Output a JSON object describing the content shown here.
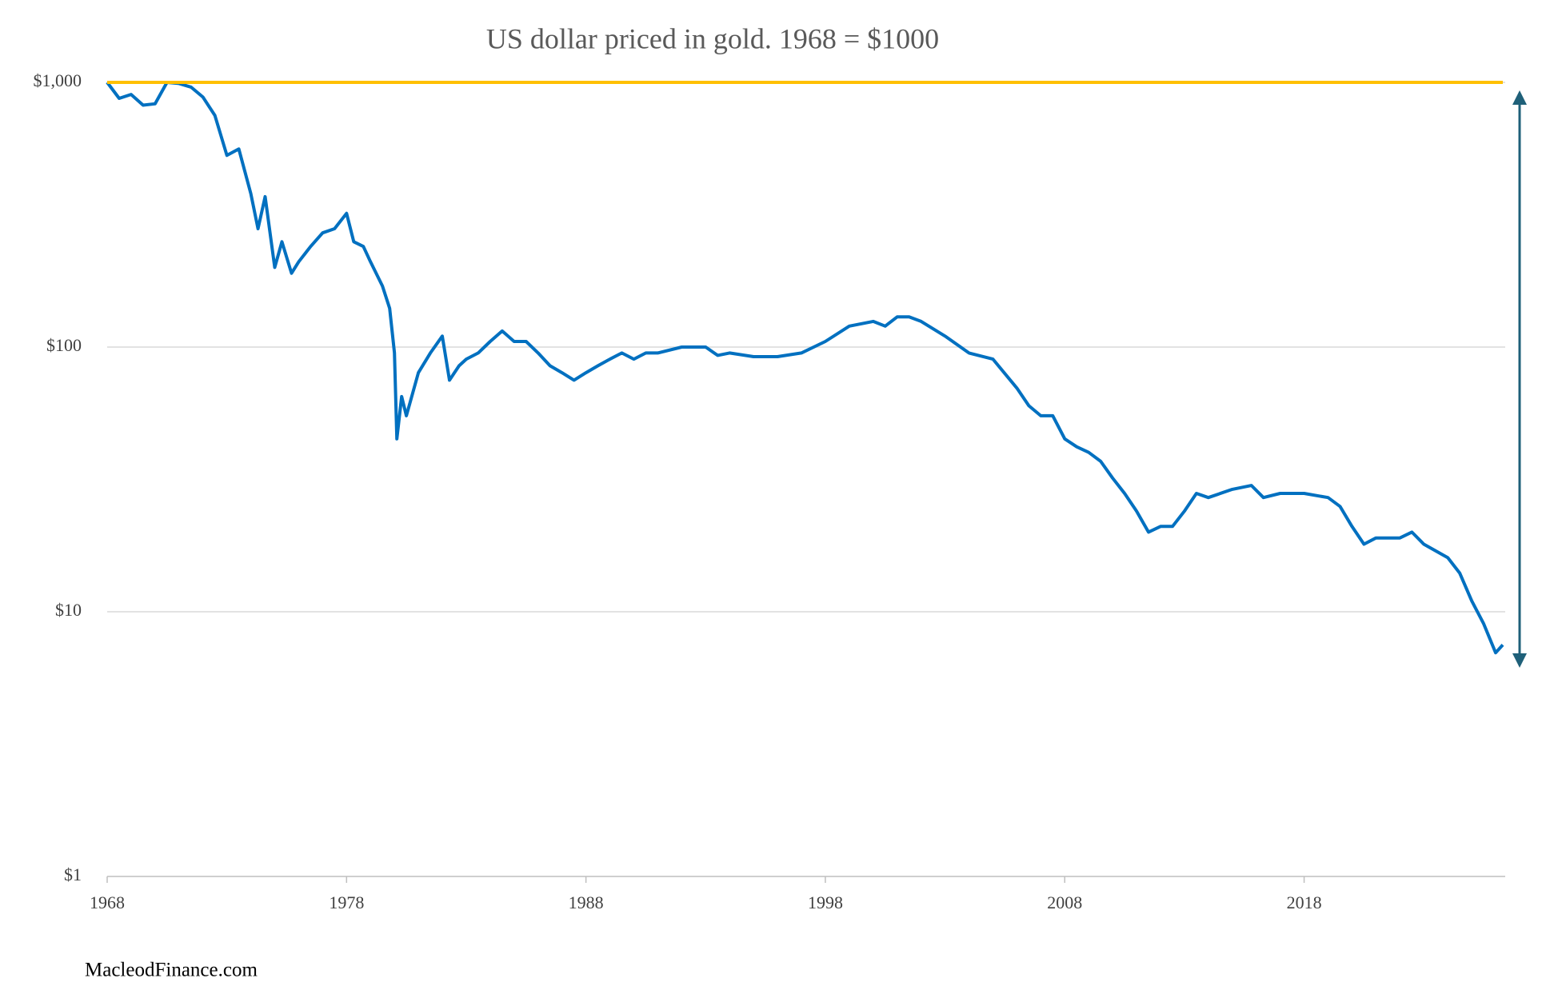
{
  "chart_data": {
    "type": "line",
    "title": "US dollar priced in gold. 1968 = $1000",
    "source": "MacleodFinance.com",
    "log_scale": true,
    "grid": true,
    "xlim": [
      1968,
      2026.4
    ],
    "xticks": [
      1968,
      1978,
      1988,
      1998,
      2008,
      2018
    ],
    "ylim": [
      1,
      1000
    ],
    "yticks": [
      {
        "value": 1,
        "label": "$1"
      },
      {
        "value": 10,
        "label": "$10"
      },
      {
        "value": 100,
        "label": "$100"
      },
      {
        "value": 1000,
        "label": "$1,000"
      }
    ],
    "x": [
      1968,
      1968.5,
      1969,
      1969.5,
      1970,
      1970.5,
      1971,
      1971.5,
      1972,
      1972.5,
      1973,
      1973.5,
      1974,
      1974.3,
      1974.6,
      1975,
      1975.3,
      1975.7,
      1976,
      1976.5,
      1977,
      1977.5,
      1978,
      1978.3,
      1978.7,
      1979,
      1979.5,
      1979.8,
      1980,
      1980.1,
      1980.3,
      1980.5,
      1981,
      1981.5,
      1982,
      1982.3,
      1982.7,
      1983,
      1983.5,
      1984,
      1984.5,
      1985,
      1985.5,
      1986,
      1986.5,
      1987,
      1987.5,
      1988,
      1988.5,
      1989,
      1989.5,
      1990,
      1990.5,
      1991,
      1992,
      1993,
      1993.5,
      1994,
      1995,
      1996,
      1997,
      1998,
      1999,
      2000,
      2000.5,
      2001,
      2001.5,
      2002,
      2003,
      2004,
      2005,
      2006,
      2006.5,
      2007,
      2007.5,
      2008,
      2008.5,
      2009,
      2009.5,
      2010,
      2010.5,
      2011,
      2011.5,
      2012,
      2012.5,
      2013,
      2013.5,
      2014,
      2015,
      2015.8,
      2016.3,
      2017,
      2018,
      2019,
      2019.5,
      2020,
      2020.5,
      2021,
      2022,
      2022.5,
      2023,
      2024,
      2024.5,
      2025,
      2025.5,
      2026,
      2026.3
    ],
    "series": [
      {
        "color": "#0070c0",
        "values": [
          1000,
          870,
          900,
          820,
          830,
          1000,
          990,
          960,
          880,
          750,
          530,
          560,
          380,
          280,
          370,
          200,
          250,
          190,
          210,
          240,
          270,
          280,
          320,
          250,
          240,
          210,
          170,
          140,
          95,
          45,
          65,
          55,
          80,
          95,
          110,
          75,
          85,
          90,
          95,
          105,
          115,
          105,
          105,
          95,
          85,
          80,
          75,
          80,
          85,
          90,
          95,
          90,
          95,
          95,
          100,
          100,
          93,
          95,
          92,
          92,
          95,
          105,
          120,
          125,
          120,
          130,
          130,
          125,
          110,
          95,
          90,
          70,
          60,
          55,
          55,
          45,
          42,
          40,
          37,
          32,
          28,
          24,
          20,
          21,
          21,
          24,
          28,
          27,
          29,
          30,
          27,
          28,
          28,
          27,
          25,
          21,
          18,
          19,
          19,
          20,
          18,
          16,
          14,
          11,
          9,
          7,
          7.5
        ]
      },
      {
        "color": "#ffc000",
        "values": [
          1000,
          1000,
          1000,
          1000,
          1000,
          1000,
          1000,
          1000,
          1000,
          1000,
          1000,
          1000,
          1000,
          1000,
          1000,
          1000,
          1000,
          1000,
          1000,
          1000,
          1000,
          1000,
          1000,
          1000,
          1000,
          1000,
          1000,
          1000,
          1000,
          1000,
          1000,
          1000,
          1000,
          1000,
          1000,
          1000,
          1000,
          1000,
          1000,
          1000,
          1000,
          1000,
          1000,
          1000,
          1000,
          1000,
          1000,
          1000,
          1000,
          1000,
          1000,
          1000,
          1000,
          1000,
          1000,
          1000,
          1000,
          1000,
          1000,
          1000,
          1000,
          1000,
          1000,
          1000,
          1000,
          1000,
          1000,
          1000,
          1000,
          1000,
          1000,
          1000,
          1000,
          1000,
          1000,
          1000,
          1000,
          1000,
          1000,
          1000,
          1000,
          1000,
          1000,
          1000,
          1000,
          1000,
          1000,
          1000,
          1000,
          1000,
          1000,
          1000,
          1000,
          1000,
          1000,
          1000,
          1000,
          1000,
          1000,
          1000,
          1000,
          1000,
          1000,
          1000,
          1000,
          1000,
          1000
        ]
      }
    ]
  }
}
